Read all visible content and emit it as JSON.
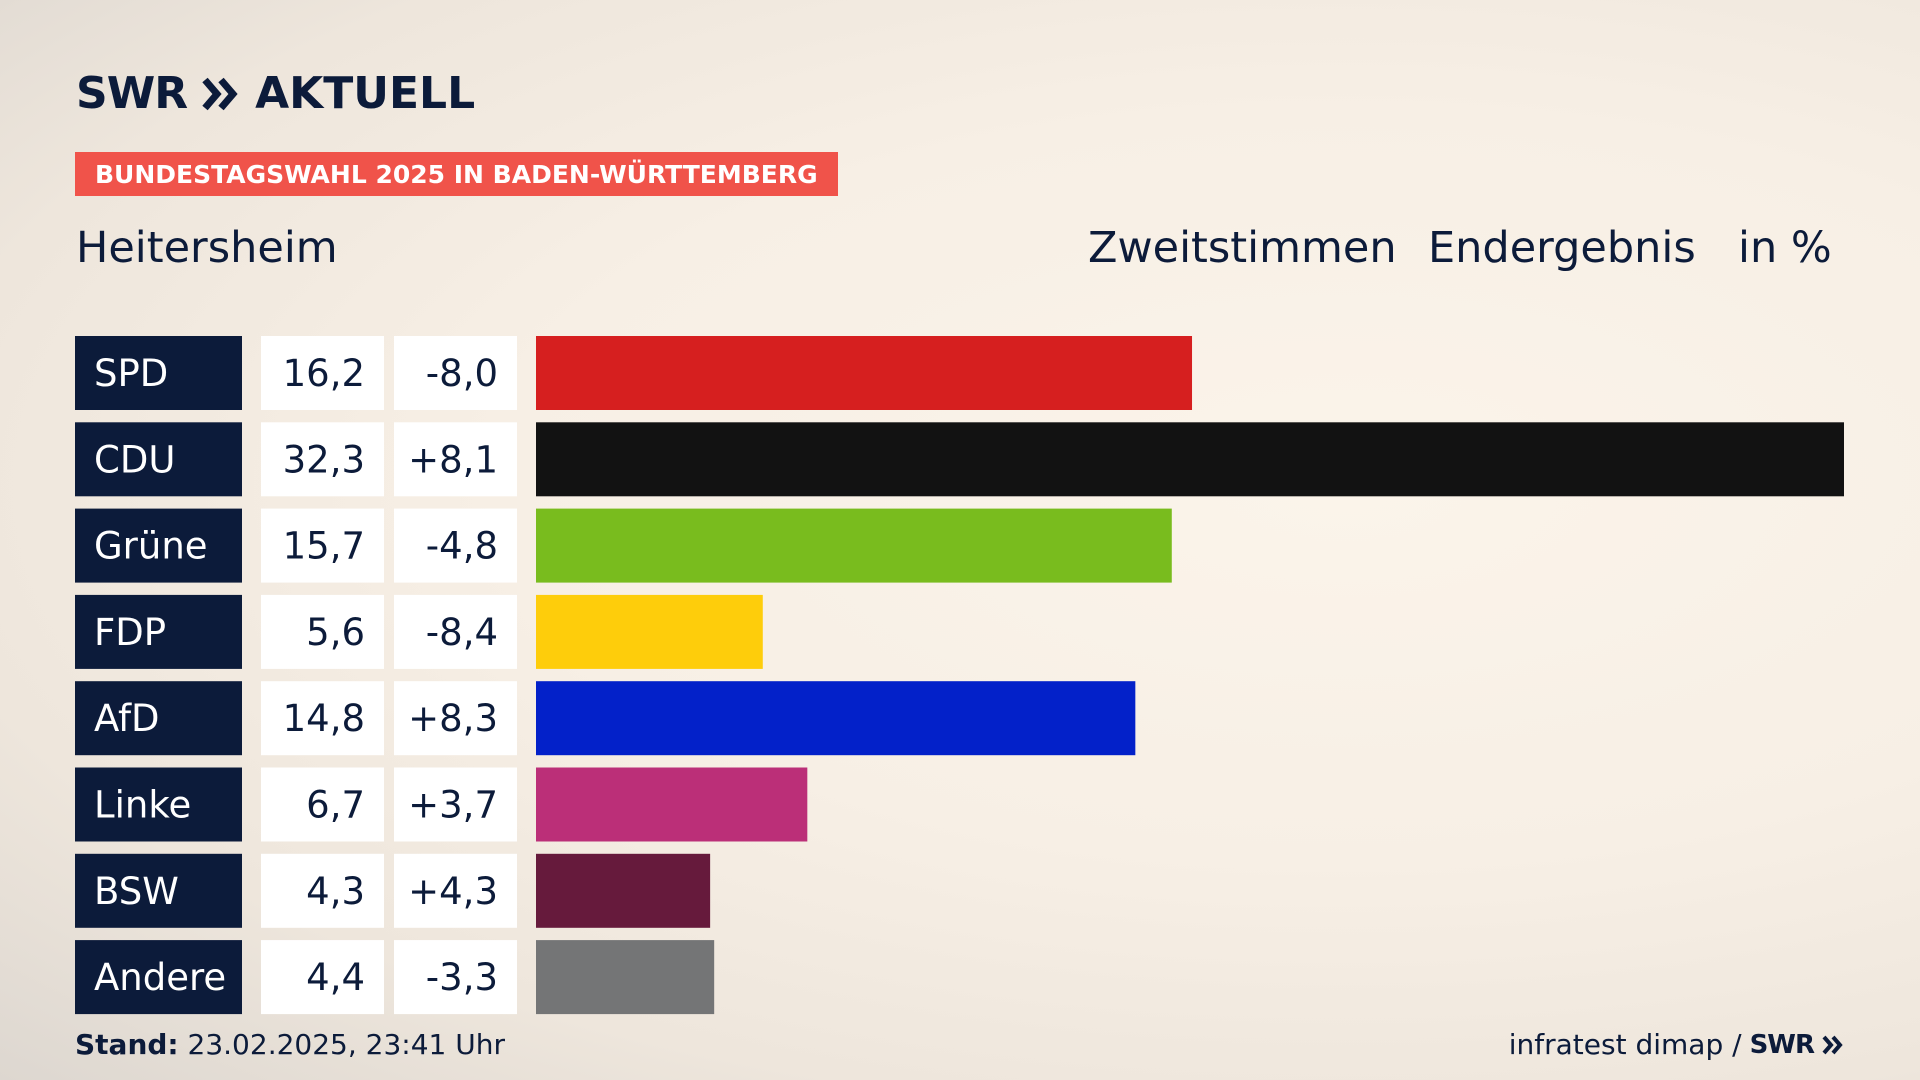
{
  "header": {
    "brand": "SWR",
    "brand_sub": "AKTUELL",
    "banner": "BUNDESTAGSWAHL 2025 IN BADEN-WÜRTTEMBERG",
    "location": "Heitersheim",
    "vote_type": "Zweitstimmen",
    "result_type": "Endergebnis",
    "unit": "in %"
  },
  "footer": {
    "stand_label": "Stand:",
    "stand_value": "23.02.2025, 23:41 Uhr",
    "source": "infratest dimap /",
    "source_brand": "SWR"
  },
  "chart_data": {
    "type": "bar",
    "orientation": "horizontal",
    "categories": [
      "SPD",
      "CDU",
      "Grüne",
      "FDP",
      "AfD",
      "Linke",
      "BSW",
      "Andere"
    ],
    "values": [
      16.2,
      32.3,
      15.7,
      5.6,
      14.8,
      6.7,
      4.3,
      4.4
    ],
    "value_labels": [
      "16,2",
      "32,3",
      "15,7",
      "5,6",
      "14,8",
      "6,7",
      "4,3",
      "4,4"
    ],
    "change_labels": [
      "-8,0",
      "+8,1",
      "-4,8",
      "-8,4",
      "+8,3",
      "+3,7",
      "+4,3",
      "-3,3"
    ],
    "changes": [
      -8.0,
      8.1,
      -4.8,
      -8.4,
      8.3,
      3.7,
      4.3,
      -3.3
    ],
    "colors": [
      "#d61f1f",
      "#121212",
      "#79bc1e",
      "#fecd0b",
      "#0321c9",
      "#bb2f78",
      "#661a3c",
      "#747576"
    ],
    "xlim": [
      0,
      32.3
    ]
  }
}
